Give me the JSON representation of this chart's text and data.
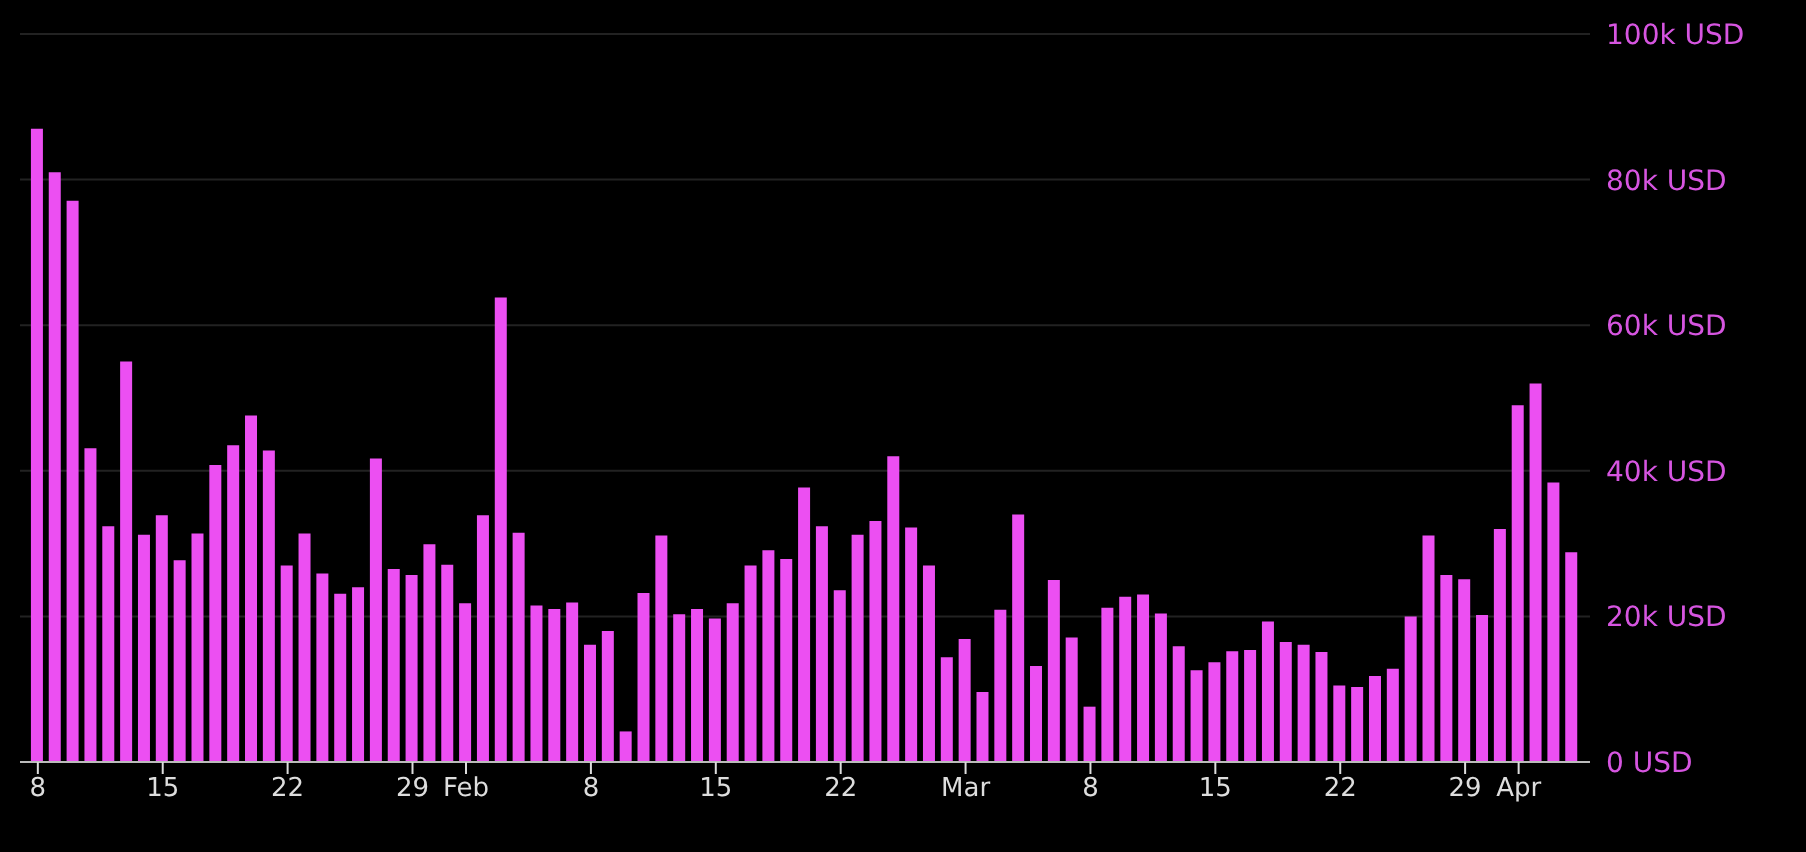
{
  "chart_data": {
    "type": "bar",
    "x": [
      "--01-08",
      "--01-09",
      "--01-10",
      "--01-11",
      "--01-12",
      "--01-13",
      "--01-14",
      "--01-15",
      "--01-16",
      "--01-17",
      "--01-18",
      "--01-19",
      "--01-20",
      "--01-21",
      "--01-22",
      "--01-23",
      "--01-24",
      "--01-25",
      "--01-26",
      "--01-27",
      "--01-28",
      "--01-29",
      "--01-30",
      "--01-31",
      "--02-01",
      "--02-02",
      "--02-03",
      "--02-04",
      "--02-05",
      "--02-06",
      "--02-07",
      "--02-08",
      "--02-09",
      "--02-10",
      "--02-11",
      "--02-12",
      "--02-13",
      "--02-14",
      "--02-15",
      "--02-16",
      "--02-17",
      "--02-18",
      "--02-19",
      "--02-20",
      "--02-21",
      "--02-22",
      "--02-23",
      "--02-24",
      "--02-25",
      "--02-26",
      "--02-27",
      "--02-28",
      "--03-01",
      "--03-02",
      "--03-03",
      "--03-04",
      "--03-05",
      "--03-06",
      "--03-07",
      "--03-08",
      "--03-09",
      "--03-10",
      "--03-11",
      "--03-12",
      "--03-13",
      "--03-14",
      "--03-15",
      "--03-16",
      "--03-17",
      "--03-18",
      "--03-19",
      "--03-20",
      "--03-21",
      "--03-22",
      "--03-23",
      "--03-24",
      "--03-25",
      "--03-26",
      "--03-27",
      "--03-28",
      "--03-29",
      "--03-30",
      "--03-31",
      "--04-01",
      "--04-02",
      "--04-03",
      "--04-04"
    ],
    "values": [
      87000,
      81000,
      77100,
      43100,
      32400,
      55000,
      31200,
      33900,
      27700,
      31400,
      40800,
      43500,
      47600,
      42800,
      27000,
      31400,
      25900,
      23100,
      24000,
      41700,
      26500,
      25700,
      29900,
      27100,
      21800,
      33900,
      63800,
      31500,
      21500,
      21000,
      21900,
      16100,
      18000,
      4200,
      23200,
      31100,
      20300,
      21000,
      19700,
      21800,
      27000,
      29100,
      27900,
      37700,
      32400,
      23600,
      31200,
      33100,
      42000,
      32200,
      27000,
      14400,
      16900,
      9600,
      20900,
      34000,
      13200,
      25000,
      17100,
      7600,
      21200,
      22700,
      23000,
      20400,
      15900,
      12600,
      13700,
      15200,
      15400,
      19300,
      16500,
      16100,
      15100,
      10500,
      10300,
      11800,
      12800,
      20000,
      31100,
      25700,
      25100,
      20200,
      32000,
      49000,
      52000,
      38400,
      28800
    ],
    "color": "#ec4ff2",
    "xlim": [
      "--01-07",
      "--04-05"
    ],
    "xticks": [
      {
        "value": "--01-08",
        "label": "8"
      },
      {
        "value": "--01-15",
        "label": "15"
      },
      {
        "value": "--01-22",
        "label": "22"
      },
      {
        "value": "--01-29",
        "label": "29"
      },
      {
        "value": "--02-01",
        "label": "Feb"
      },
      {
        "value": "--02-08",
        "label": "8"
      },
      {
        "value": "--02-15",
        "label": "15"
      },
      {
        "value": "--02-22",
        "label": "22"
      },
      {
        "value": "--03-01",
        "label": "Mar"
      },
      {
        "value": "--03-08",
        "label": "8"
      },
      {
        "value": "--03-15",
        "label": "15"
      },
      {
        "value": "--03-22",
        "label": "22"
      },
      {
        "value": "--03-29",
        "label": "29"
      },
      {
        "value": "--04-01",
        "label": "Apr"
      }
    ],
    "ylim": [
      0,
      100000
    ],
    "yticks": [
      {
        "value": 0,
        "label": "0 USD"
      },
      {
        "value": 20000,
        "label": "20k USD"
      },
      {
        "value": 40000,
        "label": "40k USD"
      },
      {
        "value": 60000,
        "label": "60k USD"
      },
      {
        "value": 80000,
        "label": "80k USD"
      },
      {
        "value": 100000,
        "label": "100k USD"
      }
    ],
    "grid": "y"
  }
}
